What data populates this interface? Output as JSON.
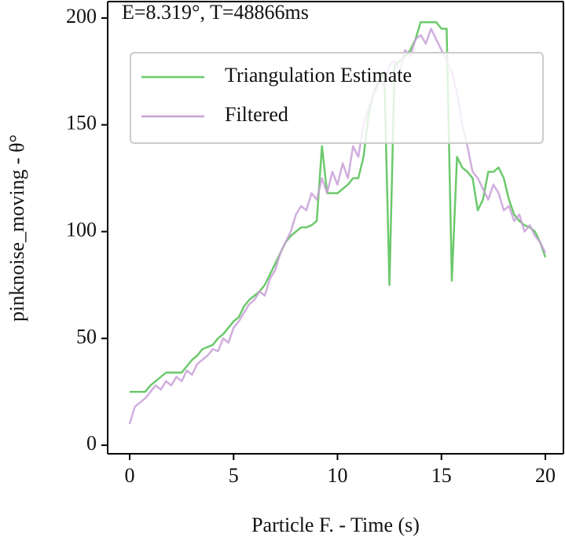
{
  "chart_data": {
    "type": "line",
    "title": "E=8.319°, T=48866ms",
    "xlabel": "Particle F. - Time (s)",
    "ylabel": "pinknoise_moving - θ°",
    "x": [
      0,
      0.25,
      0.5,
      0.75,
      1,
      1.25,
      1.5,
      1.75,
      2,
      2.25,
      2.5,
      2.75,
      3,
      3.25,
      3.5,
      3.75,
      4,
      4.25,
      4.5,
      4.75,
      5,
      5.25,
      5.5,
      5.75,
      6,
      6.25,
      6.5,
      6.75,
      7,
      7.25,
      7.5,
      7.75,
      8,
      8.25,
      8.5,
      8.75,
      9,
      9.25,
      9.5,
      9.75,
      10,
      10.25,
      10.5,
      10.75,
      11,
      11.25,
      11.5,
      11.75,
      12,
      12.25,
      12.5,
      12.75,
      13,
      13.25,
      13.5,
      13.75,
      14,
      14.25,
      14.5,
      14.75,
      15,
      15.25,
      15.5,
      15.75,
      16,
      16.25,
      16.5,
      16.75,
      17,
      17.25,
      17.5,
      17.75,
      18,
      18.25,
      18.5,
      18.75,
      19,
      19.25,
      19.5,
      19.75,
      20
    ],
    "series": [
      {
        "name": "Triangulation Estimate",
        "color": "#6cc96c",
        "values": [
          25,
          25,
          25,
          25,
          28,
          30,
          32,
          34,
          34,
          34,
          34,
          37,
          40,
          42,
          45,
          46,
          47,
          50,
          52,
          55,
          58,
          60,
          65,
          68,
          70,
          72,
          75,
          80,
          85,
          90,
          95,
          98,
          100,
          102,
          102,
          103,
          105,
          140,
          118,
          118,
          118,
          120,
          122,
          125,
          125,
          135,
          155,
          165,
          170,
          175,
          75,
          178,
          180,
          182,
          185,
          190,
          198,
          198,
          198,
          198,
          195,
          195,
          77,
          135,
          130,
          128,
          125,
          110,
          115,
          128,
          128,
          130,
          125,
          115,
          108,
          105,
          103,
          102,
          100,
          95,
          88
        ]
      },
      {
        "name": "Filtered",
        "color": "#c8a0d8",
        "values": [
          10,
          18,
          20,
          22,
          25,
          28,
          26,
          30,
          28,
          32,
          30,
          35,
          33,
          38,
          40,
          42,
          45,
          44,
          50,
          48,
          55,
          58,
          62,
          66,
          68,
          72,
          70,
          78,
          82,
          90,
          95,
          100,
          108,
          112,
          110,
          118,
          115,
          125,
          118,
          128,
          122,
          132,
          125,
          140,
          135,
          150,
          158,
          165,
          172,
          168,
          178,
          180,
          175,
          185,
          182,
          190,
          192,
          188,
          195,
          190,
          185,
          180,
          175,
          165,
          150,
          140,
          128,
          125,
          120,
          115,
          122,
          118,
          110,
          112,
          105,
          108,
          100,
          103,
          98,
          95,
          90
        ]
      }
    ],
    "xlim": [
      -1.06,
      20.87
    ],
    "ylim": [
      -4,
      207.7
    ],
    "xticks": [
      0,
      5,
      10,
      15,
      20
    ],
    "yticks": [
      0,
      50,
      100,
      150,
      200
    ],
    "legend": "upper right"
  }
}
